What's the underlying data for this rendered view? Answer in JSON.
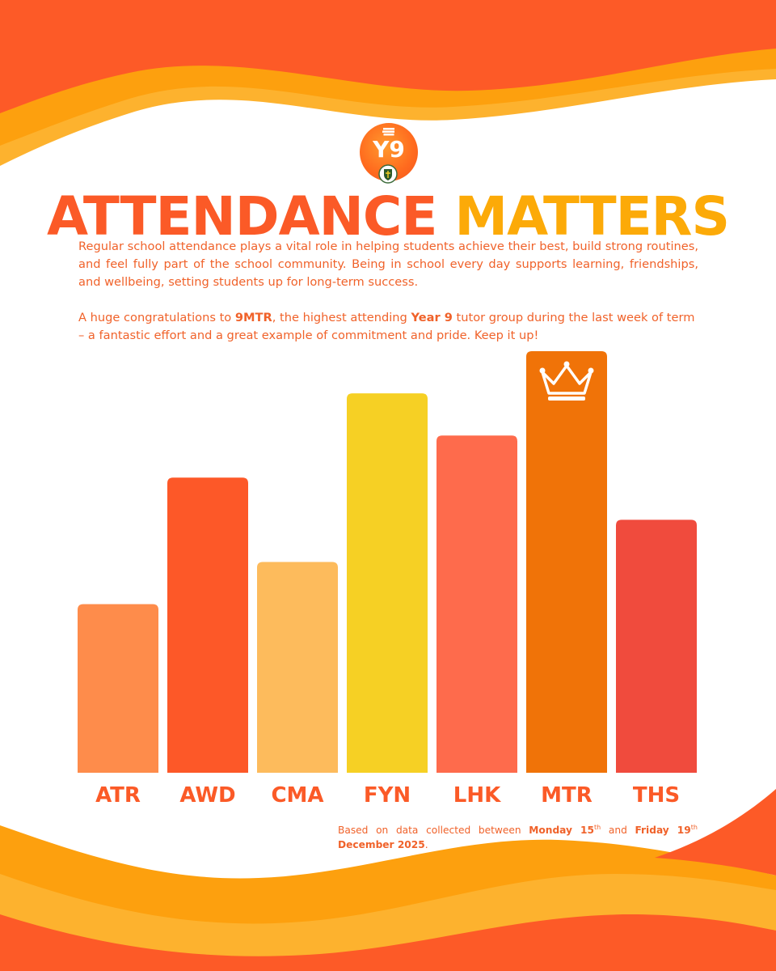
{
  "header": {
    "logo_text": "Y9",
    "title_part1": "ATTENDANCE",
    "title_part2": "MATTERS"
  },
  "intro": {
    "paragraph": "Regular school attendance plays a vital role in helping students achieve their best, build strong routines, and feel fully part of the school community. Being in school every day supports learning, friendships, and wellbeing, setting students up for long-term success."
  },
  "congrats": {
    "text_before": "A huge congratulations to ",
    "group": "9MTR",
    "text_middle": ", the highest attending ",
    "year": "Year 9",
    "text_after": " tutor group during the last week of term – a fantastic effort and a great example of commitment and pride. Keep it up!"
  },
  "chart_data": {
    "type": "bar",
    "categories": [
      "ATR",
      "AWD",
      "CMA",
      "FYN",
      "LHK",
      "MTR",
      "THS"
    ],
    "values": [
      4,
      7,
      5,
      9,
      8,
      10,
      6
    ],
    "ylim": [
      0,
      10
    ],
    "grid": false,
    "highlight": "MTR",
    "highlight_icon": "crown-icon",
    "colors": [
      "#fe8c4b",
      "#fd5828",
      "#fdbb5c",
      "#f6d024",
      "#fe6b4c",
      "#f07308",
      "#f04b3d"
    ],
    "label_color": "#fb5a27"
  },
  "footnote": {
    "text_before": "Based on data collected between ",
    "start_day": "Monday 15",
    "start_suffix": "th",
    "text_middle": " and ",
    "end_day": "Friday 19",
    "end_suffix": "th",
    "end_rest": "December 2025",
    "text_after": "."
  },
  "theme": {
    "orange": "#fd5a27",
    "amber": "#fda00e",
    "light_orange": "#fdb22e",
    "text": "#f0622a"
  }
}
